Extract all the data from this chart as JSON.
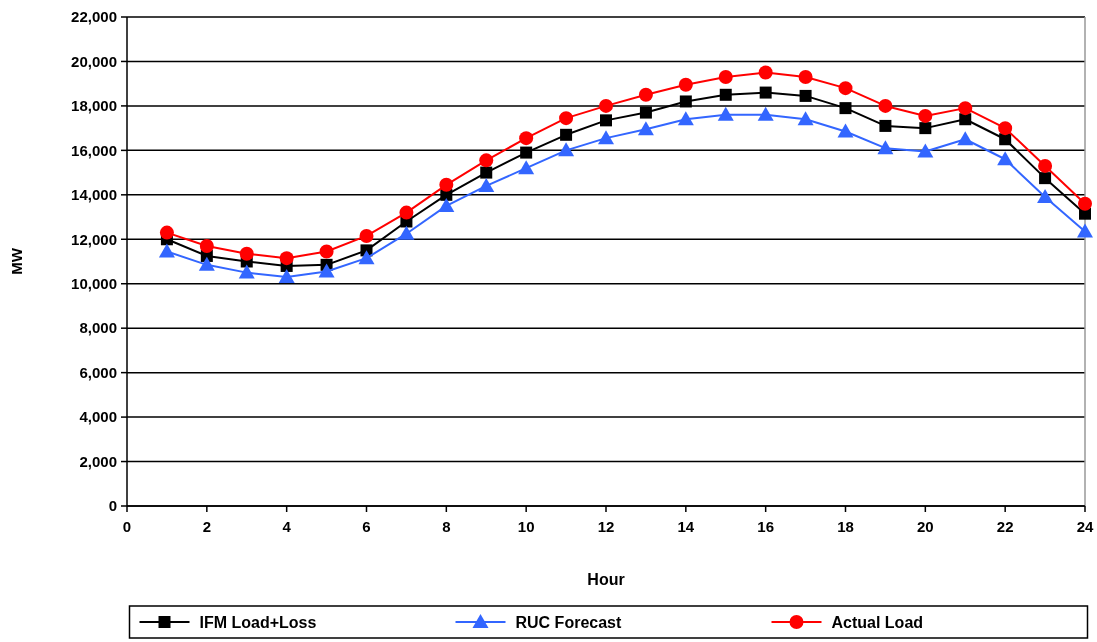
{
  "chart_data": {
    "type": "line",
    "xlabel": "Hour",
    "ylabel": "MW",
    "x": [
      1,
      2,
      3,
      4,
      5,
      6,
      7,
      8,
      9,
      10,
      11,
      12,
      13,
      14,
      15,
      16,
      17,
      18,
      19,
      20,
      21,
      22,
      23,
      24
    ],
    "xlim": [
      0,
      24
    ],
    "xticks": [
      {
        "value": 0,
        "label": "0"
      },
      {
        "value": 2,
        "label": "2"
      },
      {
        "value": 4,
        "label": "4"
      },
      {
        "value": 6,
        "label": "6"
      },
      {
        "value": 8,
        "label": "8"
      },
      {
        "value": 10,
        "label": "10"
      },
      {
        "value": 12,
        "label": "12"
      },
      {
        "value": 14,
        "label": "14"
      },
      {
        "value": 16,
        "label": "16"
      },
      {
        "value": 18,
        "label": "18"
      },
      {
        "value": 20,
        "label": "20"
      },
      {
        "value": 22,
        "label": "22"
      },
      {
        "value": 24,
        "label": "24"
      }
    ],
    "ylim": [
      0,
      22000
    ],
    "yticks": [
      {
        "value": 0,
        "label": "0"
      },
      {
        "value": 2000,
        "label": "2,000"
      },
      {
        "value": 4000,
        "label": "4,000"
      },
      {
        "value": 6000,
        "label": "6,000"
      },
      {
        "value": 8000,
        "label": "8,000"
      },
      {
        "value": 10000,
        "label": "10,000"
      },
      {
        "value": 12000,
        "label": "12,000"
      },
      {
        "value": 14000,
        "label": "14,000"
      },
      {
        "value": 16000,
        "label": "16,000"
      },
      {
        "value": 18000,
        "label": "18,000"
      },
      {
        "value": 20000,
        "label": "20,000"
      },
      {
        "value": 22000,
        "label": "22,000"
      }
    ],
    "grid": "y",
    "legend": "bottom",
    "line_style": "solid",
    "series": [
      {
        "name": "IFM Load+Loss",
        "color": "#000000",
        "marker": "square",
        "values": [
          12000,
          11250,
          11000,
          10800,
          10850,
          11500,
          12800,
          14000,
          15000,
          15900,
          16700,
          17350,
          17700,
          18200,
          18500,
          18600,
          18450,
          17900,
          17100,
          17000,
          17400,
          16500,
          14750,
          13150
        ]
      },
      {
        "name": "RUC Forecast",
        "color": "#3366ff",
        "marker": "triangle",
        "values": [
          11450,
          10850,
          10500,
          10300,
          10550,
          11150,
          12250,
          13500,
          14400,
          15200,
          16000,
          16550,
          16950,
          17400,
          17600,
          17600,
          17400,
          16850,
          16100,
          15950,
          16500,
          15600,
          13900,
          12350
        ]
      },
      {
        "name": "Actual Load",
        "color": "#ff0000",
        "marker": "circle",
        "values": [
          12300,
          11700,
          11350,
          11150,
          11450,
          12150,
          13200,
          14450,
          15550,
          16550,
          17450,
          18000,
          18500,
          18950,
          19300,
          19500,
          19300,
          18800,
          18000,
          17550,
          17900,
          17000,
          15300,
          13600
        ]
      }
    ]
  }
}
